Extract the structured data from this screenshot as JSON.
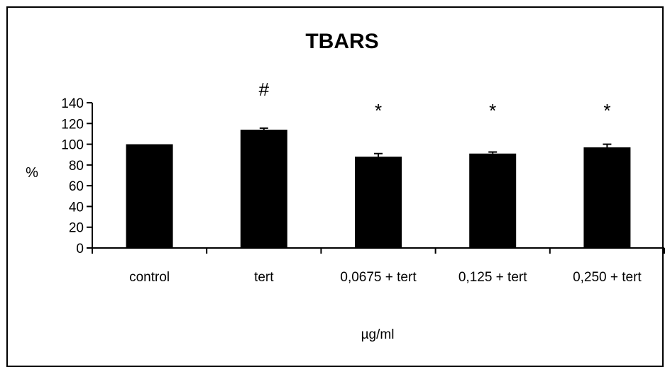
{
  "chart_data": {
    "type": "bar",
    "title": "TBARS",
    "xlabel": "µg/ml",
    "ylabel": "%",
    "categories": [
      "control",
      "tert",
      "0,0675 + tert",
      "0,125 + tert",
      "0,250 + tert"
    ],
    "values": [
      100,
      114,
      88,
      91,
      97
    ],
    "errors": [
      0,
      1.5,
      3,
      1.5,
      3
    ],
    "annotations": [
      "",
      "#",
      "*",
      "*",
      "*"
    ],
    "ylim": [
      0,
      140
    ],
    "yticks": [
      0,
      20,
      40,
      60,
      80,
      100,
      120,
      140
    ],
    "grid": false,
    "legend": "none",
    "bar_color": "#000000"
  }
}
